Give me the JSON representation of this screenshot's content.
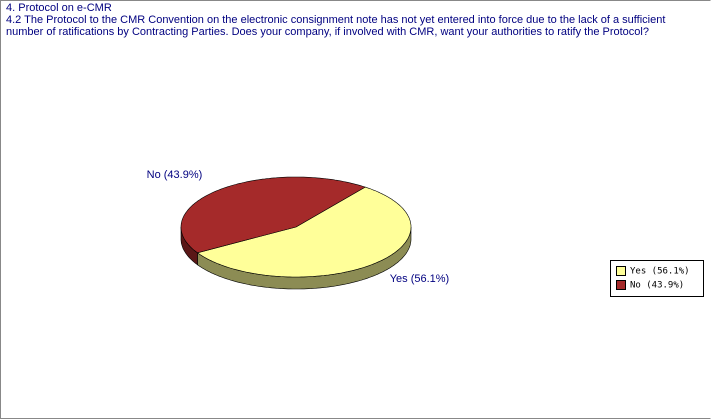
{
  "chart_data": {
    "type": "pie",
    "title": "4.  Protocol on e-CMR",
    "subtitle": "4.2  The Protocol to the CMR Convention on the electronic consignment note has not yet entered into force due to the lack of a sufficient number of ratifications by Contracting Parties.  Does your company, if involved with CMR, want your authorities to ratify the Protocol?",
    "categories": [
      "Yes",
      "No"
    ],
    "values": [
      56.1,
      43.9
    ],
    "value_labels": [
      "Yes (56.1%)",
      "No (43.9%)"
    ],
    "colors": [
      "#ffff99",
      "#a52a2a"
    ],
    "legend": "right"
  }
}
